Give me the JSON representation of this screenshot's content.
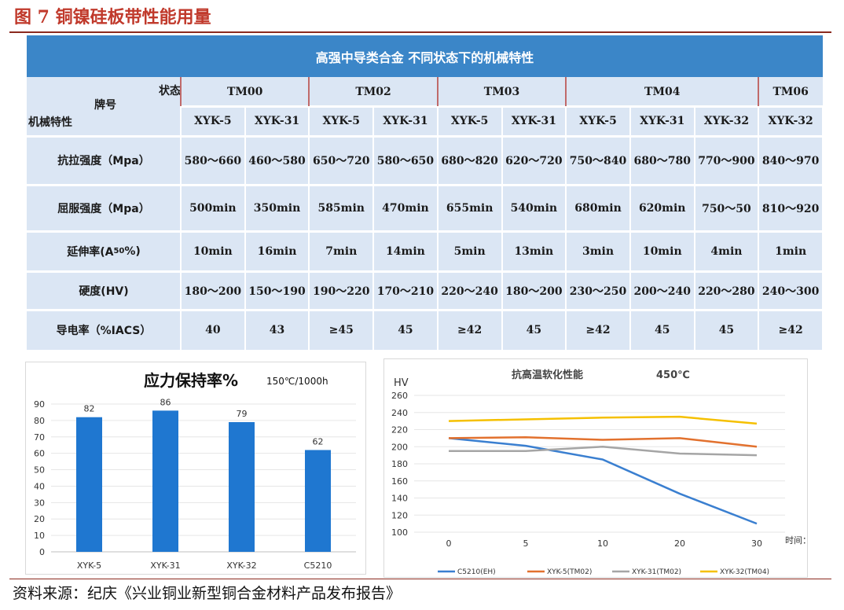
{
  "figure_title": "图 7  铜镍硅板带性能用量",
  "source": "资料来源：纪庆《兴业铜业新型铜合金材料产品发布报告》",
  "table": {
    "title": "高强中导类合金 不同状态下的机械特性",
    "corner_state": "状态",
    "corner_grade": "牌号",
    "corner_prop": "机械特性",
    "states": [
      "TM00",
      "TM02",
      "TM03",
      "TM04",
      "TM06"
    ],
    "grades": [
      "XYK-5",
      "XYK-31",
      "XYK-5",
      "XYK-31",
      "XYK-5",
      "XYK-31",
      "XYK-5",
      "XYK-31",
      "XYK-32",
      "XYK-32"
    ],
    "rows": [
      {
        "label": "抗拉强度（Mpa）",
        "values": [
          "580～660",
          "460～580",
          "650～720",
          "580～650",
          "680～820",
          "620～720",
          "750～840",
          "680～780",
          "770～900",
          "840～970"
        ]
      },
      {
        "label": "屈服强度（Mpa）",
        "values": [
          "500min",
          "350min",
          "585min",
          "470min",
          "655min",
          "540min",
          "680min",
          "620min",
          "750～50",
          "810～920"
        ]
      },
      {
        "label_main": "延伸率(A",
        "label_sub": "50",
        "label_end": "%)",
        "values": [
          "10min",
          "16min",
          "7min",
          "14min",
          "5min",
          "13min",
          "3min",
          "10min",
          "4min",
          "1min"
        ]
      },
      {
        "label": "硬度(HV)",
        "values": [
          "180～200",
          "150～190",
          "190～220",
          "170～210",
          "220～240",
          "180～200",
          "230～250",
          "200～240",
          "220～280",
          "240～300"
        ]
      },
      {
        "label": "导电率（%IACS）",
        "values": [
          "40",
          "43",
          "≥45",
          "45",
          "≥42",
          "45",
          "≥42",
          "45",
          "45",
          "≥42"
        ]
      }
    ]
  },
  "chart_data": [
    {
      "type": "bar",
      "title": "应力保持率%",
      "subtitle": "150℃/1000h",
      "categories": [
        "XYK-5",
        "XYK-31",
        "XYK-32",
        "C5210"
      ],
      "values": [
        82,
        86,
        79,
        62
      ],
      "ylim": [
        0,
        90
      ],
      "yticks": [
        0,
        10,
        20,
        30,
        40,
        50,
        60,
        70,
        80,
        90
      ],
      "color": "#1f77d0",
      "grid": true
    },
    {
      "type": "line",
      "title": "抗高温软化性能",
      "subtitle": "450℃",
      "ylabel": "HV",
      "xlabel": "时间：min",
      "x": [
        "0",
        "5",
        "10",
        "20",
        "30"
      ],
      "ylim": [
        100,
        260
      ],
      "yticks": [
        100,
        120,
        140,
        160,
        180,
        200,
        220,
        240,
        260
      ],
      "grid": true,
      "legend_position": "bottom",
      "series": [
        {
          "name": "C5210(EH)",
          "color": "#3a7fd0",
          "values": [
            210,
            201,
            185,
            145,
            110
          ]
        },
        {
          "name": "XYK-5(TM02)",
          "color": "#e2712e",
          "values": [
            210,
            211,
            208,
            210,
            200
          ]
        },
        {
          "name": "XYK-31(TM02)",
          "color": "#a5a5a5",
          "values": [
            195,
            195,
            200,
            192,
            190
          ]
        },
        {
          "name": "XYK-32(TM04)",
          "color": "#f5c000",
          "values": [
            230,
            232,
            234,
            235,
            227
          ]
        }
      ]
    }
  ]
}
